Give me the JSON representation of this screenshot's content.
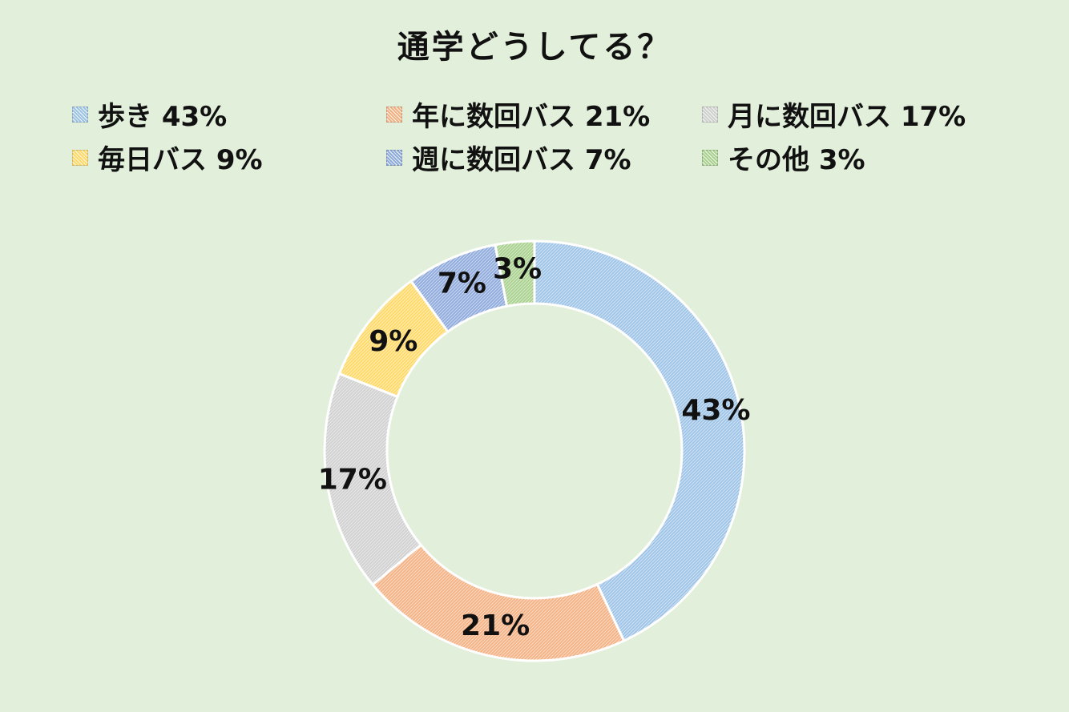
{
  "chart_data": {
    "type": "pie",
    "variant": "doughnut",
    "title": "通学どうしてる？",
    "legend_position": "top",
    "series": [
      {
        "name": "歩き",
        "value": 43,
        "label": "43%",
        "legend_label": "歩き 43%",
        "color": "#9dc3e6"
      },
      {
        "name": "年に数回バス",
        "value": 21,
        "label": "21%",
        "legend_label": "年に数回バス 21%",
        "color": "#f4b183"
      },
      {
        "name": "月に数回バス",
        "value": 17,
        "label": "17%",
        "legend_label": "月に数回バス 17%",
        "color": "#d0d0d0"
      },
      {
        "name": "毎日バス",
        "value": 9,
        "label": "9%",
        "legend_label": "毎日バス 9%",
        "color": "#ffd966"
      },
      {
        "name": "週に数回バス",
        "value": 7,
        "label": "7%",
        "legend_label": "週に数回バス 7%",
        "color": "#8faadc"
      },
      {
        "name": "その他",
        "value": 3,
        "label": "3%",
        "legend_label": "その他 3%",
        "color": "#a9d18e"
      }
    ]
  }
}
